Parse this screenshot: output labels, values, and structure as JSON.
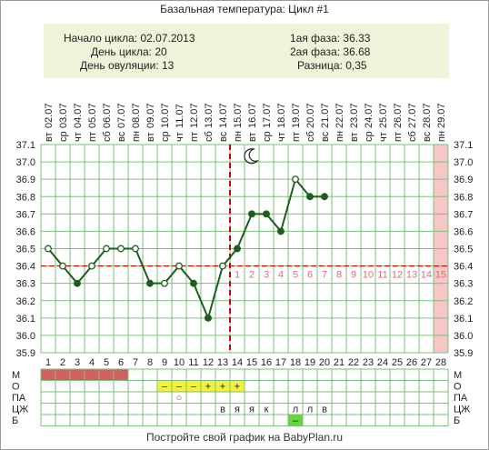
{
  "title": "Базальная температура: Цикл #1",
  "summary": {
    "cycle_start": "Начало цикла: 02.07.2013",
    "cycle_day": "День цикла: 20",
    "ovulation_day": "День овуляции: 13",
    "phase1": "1ая фаза: 36.33",
    "phase2": "2ая фаза: 36.68",
    "difference": "Разница: 0,35"
  },
  "footer": "Постройте свой график на BabyPlan.ru",
  "colors": {
    "line": "#1d5e1d",
    "grid": "#7cbf7c",
    "coverline": "#cc0000",
    "ovulation_marker": "#cc0000",
    "phase2_numbers": "#e07070",
    "shaded_day": "#f7c6c6",
    "menses": "#d16060",
    "highlight": "#f5f03a",
    "green_cell": "#66d63a"
  },
  "chart_data": {
    "type": "line",
    "ylim": [
      35.9,
      37.1
    ],
    "y_ticks": [
      "37.1",
      "37.0",
      "36.9",
      "36.8",
      "36.7",
      "36.6",
      "36.5",
      "36.4",
      "36.3",
      "36.2",
      "36.1",
      "36.0",
      "35.9"
    ],
    "days": [
      1,
      2,
      3,
      4,
      5,
      6,
      7,
      8,
      9,
      10,
      11,
      12,
      13,
      14,
      15,
      16,
      17,
      18,
      19,
      20,
      21,
      22,
      23,
      24,
      25,
      26,
      27,
      28
    ],
    "dates": [
      "02.07",
      "03.07",
      "04.07",
      "05.07",
      "06.07",
      "07.07",
      "08.07",
      "09.07",
      "10.07",
      "11.07",
      "12.07",
      "13.07",
      "14.07",
      "15.07",
      "16.07",
      "17.07",
      "18.07",
      "19.07",
      "20.07",
      "21.07",
      "22.07",
      "23.07",
      "24.07",
      "25.07",
      "26.07",
      "27.07",
      "28.07",
      "29.07"
    ],
    "weekdays": [
      "вт",
      "ср",
      "чт",
      "пт",
      "сб",
      "вс",
      "пн",
      "вт",
      "ср",
      "чт",
      "пт",
      "сб",
      "вс",
      "пн",
      "вт",
      "ср",
      "чт",
      "пт",
      "сб",
      "вс",
      "пн",
      "вт",
      "ср",
      "чт",
      "пт",
      "сб",
      "вс",
      "пн"
    ],
    "temperatures": [
      36.5,
      36.4,
      36.3,
      36.4,
      36.5,
      36.5,
      36.5,
      36.3,
      36.3,
      36.4,
      36.3,
      36.1,
      36.4,
      36.5,
      36.7,
      36.7,
      36.6,
      36.9,
      36.8,
      36.8
    ],
    "open_points": [
      1,
      2,
      4,
      5,
      6,
      7,
      9,
      10,
      13,
      18
    ],
    "coverline": 36.4,
    "ovulation_day": 13,
    "post_ovulation_labels": [
      "1",
      "2",
      "3",
      "4",
      "5",
      "6",
      "7",
      "8",
      "9",
      "10",
      "11",
      "12",
      "13",
      "14",
      "15"
    ],
    "shaded_day": 28,
    "moon_day": 15
  },
  "table": {
    "row_labels": [
      "М",
      "О",
      "ПА",
      "ЦЖ",
      "Б"
    ],
    "menses_days": [
      1,
      2,
      3,
      4,
      5,
      6
    ],
    "o_cells": [
      {
        "day": 9,
        "text": "–"
      },
      {
        "day": 10,
        "text": "–"
      },
      {
        "day": 11,
        "text": "–"
      },
      {
        "day": 12,
        "text": "+"
      },
      {
        "day": 13,
        "text": "+"
      },
      {
        "day": 14,
        "text": "+"
      }
    ],
    "pa_cells": [
      {
        "day": 10,
        "text": "○"
      }
    ],
    "cz_cells": [
      {
        "day": 13,
        "text": "в"
      },
      {
        "day": 14,
        "text": "я"
      },
      {
        "day": 15,
        "text": "я"
      },
      {
        "day": 16,
        "text": "к"
      },
      {
        "day": 18,
        "text": "л"
      },
      {
        "day": 19,
        "text": "л"
      },
      {
        "day": 20,
        "text": "в"
      }
    ],
    "b_cells": [
      {
        "day": 18,
        "text": "–"
      }
    ]
  }
}
